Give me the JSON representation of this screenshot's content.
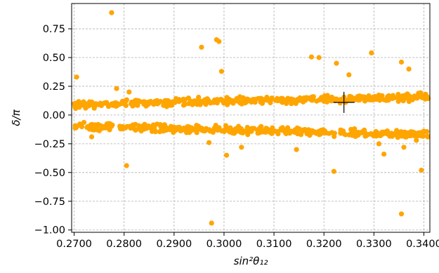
{
  "chart_data": {
    "type": "scatter",
    "xlabel": "sin²θ₁₂",
    "ylabel": "δ/π",
    "xlim": [
      0.2695,
      0.3412
    ],
    "ylim": [
      -1.02,
      0.97
    ],
    "x_ticks": [
      0.27,
      0.28,
      0.29,
      0.3,
      0.31,
      0.32,
      0.33,
      0.34
    ],
    "x_tick_labels": [
      "0.2700",
      "0.2800",
      "0.2900",
      "0.3000",
      "0.3100",
      "0.3200",
      "0.3300",
      "0.3400"
    ],
    "y_ticks": [
      0.75,
      0.5,
      0.25,
      0.0,
      -0.25,
      -0.5,
      -0.75,
      -1.0
    ],
    "y_tick_labels": [
      "0.75",
      "0.50",
      "0.25",
      "0.00",
      "−0.25",
      "−0.50",
      "−0.75",
      "−1.00"
    ],
    "grid": true,
    "point_color": "#ffa500",
    "marker": {
      "type": "cross",
      "x": 0.324,
      "y": 0.11,
      "color": "#000000"
    },
    "series": [
      {
        "bands": [
          {
            "x_range": [
              0.27,
              0.341
            ],
            "y_center_start": 0.09,
            "y_center_end": 0.16,
            "spread": 0.055,
            "count": 420
          },
          {
            "x_range": [
              0.27,
              0.341
            ],
            "y_center_start": -0.1,
            "y_center_end": -0.17,
            "spread": 0.055,
            "count": 420
          }
        ],
        "outliers": [
          [
            0.2775,
            0.89
          ],
          [
            0.2705,
            0.33
          ],
          [
            0.2955,
            0.59
          ],
          [
            0.2985,
            0.655
          ],
          [
            0.299,
            0.64
          ],
          [
            0.2995,
            0.38
          ],
          [
            0.3175,
            0.505
          ],
          [
            0.319,
            0.5
          ],
          [
            0.3225,
            0.45
          ],
          [
            0.3295,
            0.54
          ],
          [
            0.3355,
            0.46
          ],
          [
            0.337,
            0.4
          ],
          [
            0.325,
            0.35
          ],
          [
            0.2805,
            -0.44
          ],
          [
            0.3005,
            -0.35
          ],
          [
            0.2975,
            -0.94
          ],
          [
            0.322,
            -0.49
          ],
          [
            0.331,
            -0.25
          ],
          [
            0.3355,
            -0.86
          ],
          [
            0.3395,
            -0.48
          ],
          [
            0.2785,
            0.23
          ],
          [
            0.281,
            0.2
          ],
          [
            0.2735,
            -0.19
          ],
          [
            0.274,
            -0.13
          ],
          [
            0.332,
            -0.34
          ],
          [
            0.336,
            -0.28
          ],
          [
            0.3385,
            -0.22
          ],
          [
            0.3035,
            -0.28
          ],
          [
            0.3145,
            -0.3
          ],
          [
            0.297,
            -0.24
          ]
        ]
      }
    ]
  }
}
